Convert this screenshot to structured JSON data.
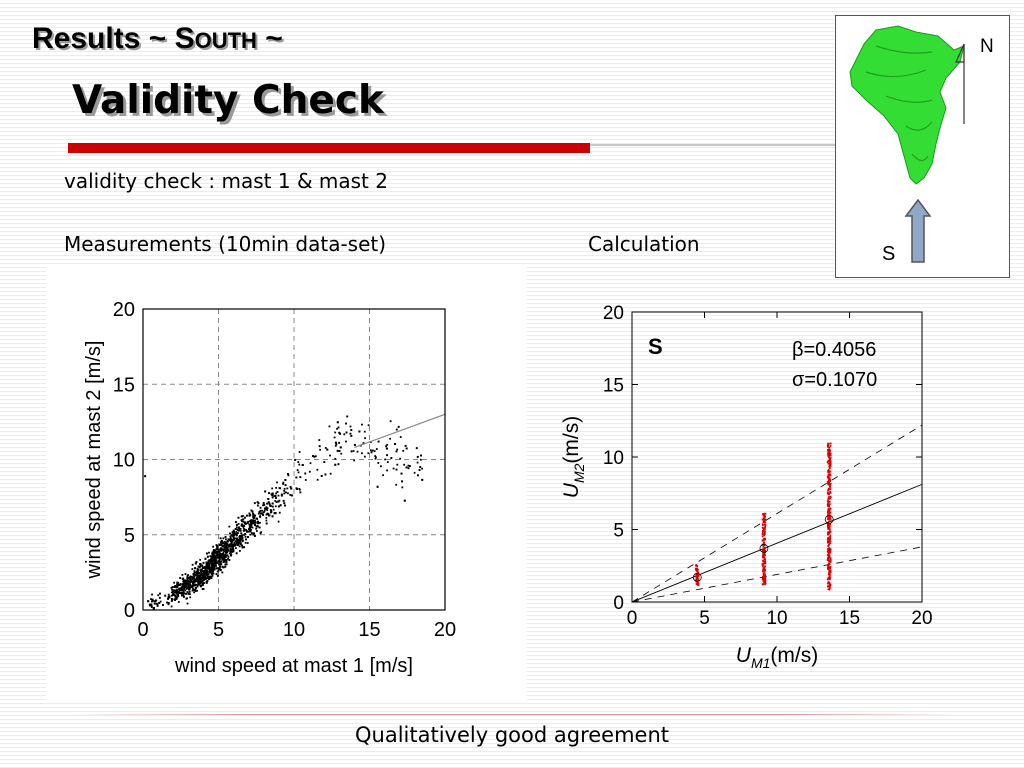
{
  "slide": {
    "title_prefix": "Results ~ ",
    "title_sc_first": "S",
    "title_sc_rest": "OUTH",
    "title_suffix": " ~",
    "subtitle": "Validity Check",
    "intro": "validity check : mast 1 & mast 2",
    "left_heading": "Measurements (10min data-set)",
    "right_heading": "Calculation",
    "conclusion": "Qualitatively good agreement"
  },
  "map": {
    "north_label": "N",
    "wind_label": "S",
    "island_color": "#33dd33",
    "arrow_color": "#8fa8c8"
  },
  "chart_data": [
    {
      "type": "scatter",
      "title": "",
      "xlabel": "wind speed at mast 1 [m/s]",
      "ylabel": "wind speed at mast 2 [m/s]",
      "xlim": [
        0,
        20
      ],
      "ylim": [
        0,
        20
      ],
      "xticks": [
        0,
        5,
        10,
        15,
        20
      ],
      "yticks": [
        0,
        5,
        10,
        15,
        20
      ],
      "grid": true,
      "point_color": "#000000",
      "point_cloud": {
        "description_note": "",
        "x_range": [
          0,
          19
        ],
        "core_trend": [
          [
            0.2,
            0.3
          ],
          [
            2,
            1.0
          ],
          [
            4,
            2.4
          ],
          [
            6,
            4.6
          ],
          [
            8,
            6.6
          ],
          [
            10,
            8.6
          ],
          [
            12,
            10.5
          ],
          [
            14,
            11.2
          ],
          [
            16,
            10.3
          ],
          [
            19,
            9
          ]
        ],
        "point_count": 2200
      },
      "reference_line": [
        [
          14,
          10.8
        ],
        [
          20,
          13
        ]
      ]
    },
    {
      "type": "scatter",
      "title": "",
      "panel_label": "S",
      "xlabel": "U_M1(m/s)",
      "ylabel": "U_M2(m/s)",
      "xlim": [
        0,
        20
      ],
      "ylim": [
        0,
        20
      ],
      "xticks": [
        0,
        5,
        10,
        15,
        20
      ],
      "yticks": [
        0,
        5,
        10,
        15,
        20
      ],
      "grid": false,
      "annotations": [
        "β=0.4056",
        "σ=0.1070"
      ],
      "series": [
        {
          "x": 4.5,
          "y_min": 1.1,
          "y_max": 2.6,
          "mean": 1.7
        },
        {
          "x": 9.1,
          "y_min": 1.2,
          "y_max": 6.1,
          "mean": 3.7
        },
        {
          "x": 13.6,
          "y_min": 0.8,
          "y_max": 11.0,
          "mean": 5.7
        }
      ],
      "fit_line_slope": 0.4056,
      "upper_dashed_slope": 0.61,
      "lower_dashed_slope": 0.19,
      "point_color": "#dd0000"
    }
  ]
}
